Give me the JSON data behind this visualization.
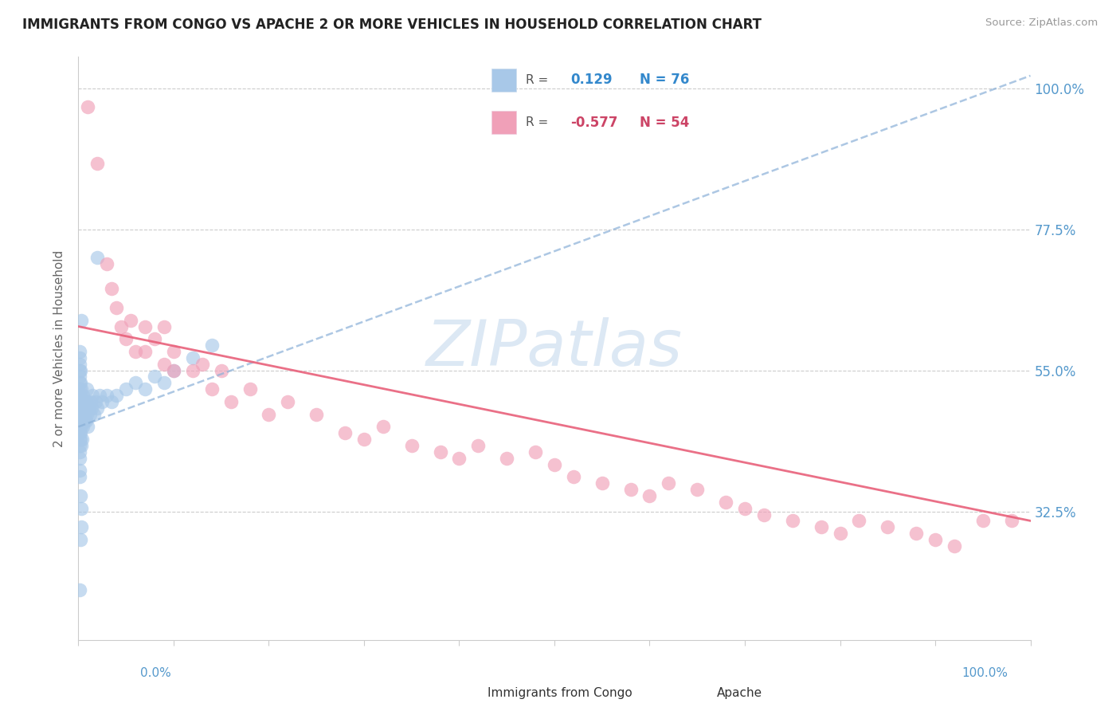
{
  "title": "IMMIGRANTS FROM CONGO VS APACHE 2 OR MORE VEHICLES IN HOUSEHOLD CORRELATION CHART",
  "source_text": "Source: ZipAtlas.com",
  "ylabel": "2 or more Vehicles in Household",
  "ylabel_ticks": [
    0.325,
    0.55,
    0.775,
    1.0
  ],
  "ylabel_tick_labels": [
    "32.5%",
    "55.0%",
    "77.5%",
    "100.0%"
  ],
  "blue_label": "Immigrants from Congo",
  "pink_label": "Apache",
  "blue_R": 0.129,
  "blue_N": 76,
  "pink_R": -0.577,
  "pink_N": 54,
  "blue_color": "#a8c8e8",
  "pink_color": "#f0a0b8",
  "trend_blue_color": "#8ab0d8",
  "trend_pink_color": "#e8607a",
  "watermark_text": "ZIPatlas",
  "watermark_color": "#dce8f4",
  "blue_x": [
    0.001,
    0.001,
    0.001,
    0.001,
    0.001,
    0.001,
    0.001,
    0.001,
    0.001,
    0.001,
    0.001,
    0.001,
    0.001,
    0.001,
    0.001,
    0.001,
    0.001,
    0.001,
    0.001,
    0.001,
    0.002,
    0.002,
    0.002,
    0.002,
    0.002,
    0.002,
    0.002,
    0.002,
    0.003,
    0.003,
    0.003,
    0.003,
    0.004,
    0.004,
    0.004,
    0.005,
    0.005,
    0.005,
    0.006,
    0.006,
    0.007,
    0.007,
    0.008,
    0.008,
    0.009,
    0.009,
    0.01,
    0.01,
    0.011,
    0.012,
    0.013,
    0.014,
    0.015,
    0.016,
    0.018,
    0.02,
    0.022,
    0.025,
    0.03,
    0.035,
    0.04,
    0.05,
    0.06,
    0.07,
    0.08,
    0.09,
    0.1,
    0.12,
    0.14,
    0.02,
    0.003,
    0.003,
    0.002,
    0.001,
    0.002,
    0.003
  ],
  "blue_y": [
    0.44,
    0.47,
    0.5,
    0.53,
    0.56,
    0.42,
    0.48,
    0.52,
    0.38,
    0.45,
    0.41,
    0.46,
    0.49,
    0.55,
    0.58,
    0.43,
    0.51,
    0.54,
    0.39,
    0.57,
    0.45,
    0.48,
    0.5,
    0.53,
    0.44,
    0.47,
    0.51,
    0.55,
    0.46,
    0.49,
    0.52,
    0.43,
    0.47,
    0.5,
    0.44,
    0.48,
    0.51,
    0.46,
    0.49,
    0.47,
    0.5,
    0.48,
    0.47,
    0.5,
    0.48,
    0.52,
    0.46,
    0.5,
    0.49,
    0.48,
    0.5,
    0.49,
    0.51,
    0.48,
    0.5,
    0.49,
    0.51,
    0.5,
    0.51,
    0.5,
    0.51,
    0.52,
    0.53,
    0.52,
    0.54,
    0.53,
    0.55,
    0.57,
    0.59,
    0.73,
    0.3,
    0.33,
    0.28,
    0.2,
    0.35,
    0.63
  ],
  "pink_x": [
    0.01,
    0.02,
    0.03,
    0.035,
    0.04,
    0.045,
    0.05,
    0.055,
    0.06,
    0.07,
    0.07,
    0.08,
    0.09,
    0.09,
    0.1,
    0.1,
    0.12,
    0.13,
    0.14,
    0.15,
    0.16,
    0.18,
    0.2,
    0.22,
    0.25,
    0.28,
    0.3,
    0.32,
    0.35,
    0.38,
    0.4,
    0.42,
    0.45,
    0.48,
    0.5,
    0.52,
    0.55,
    0.58,
    0.6,
    0.62,
    0.65,
    0.68,
    0.7,
    0.72,
    0.75,
    0.78,
    0.8,
    0.82,
    0.85,
    0.88,
    0.9,
    0.92,
    0.95,
    0.98
  ],
  "pink_y": [
    0.97,
    0.88,
    0.72,
    0.68,
    0.65,
    0.62,
    0.6,
    0.63,
    0.58,
    0.62,
    0.58,
    0.6,
    0.56,
    0.62,
    0.58,
    0.55,
    0.55,
    0.56,
    0.52,
    0.55,
    0.5,
    0.52,
    0.48,
    0.5,
    0.48,
    0.45,
    0.44,
    0.46,
    0.43,
    0.42,
    0.41,
    0.43,
    0.41,
    0.42,
    0.4,
    0.38,
    0.37,
    0.36,
    0.35,
    0.37,
    0.36,
    0.34,
    0.33,
    0.32,
    0.31,
    0.3,
    0.29,
    0.31,
    0.3,
    0.29,
    0.28,
    0.27,
    0.31,
    0.31
  ],
  "xlim": [
    0.0,
    1.0
  ],
  "ylim": [
    0.12,
    1.05
  ],
  "blue_trend_x0": 0.0,
  "blue_trend_x1": 1.0,
  "blue_trend_y0": 0.46,
  "blue_trend_y1": 1.02,
  "pink_trend_x0": 0.0,
  "pink_trend_x1": 1.0,
  "pink_trend_y0": 0.62,
  "pink_trend_y1": 0.31
}
